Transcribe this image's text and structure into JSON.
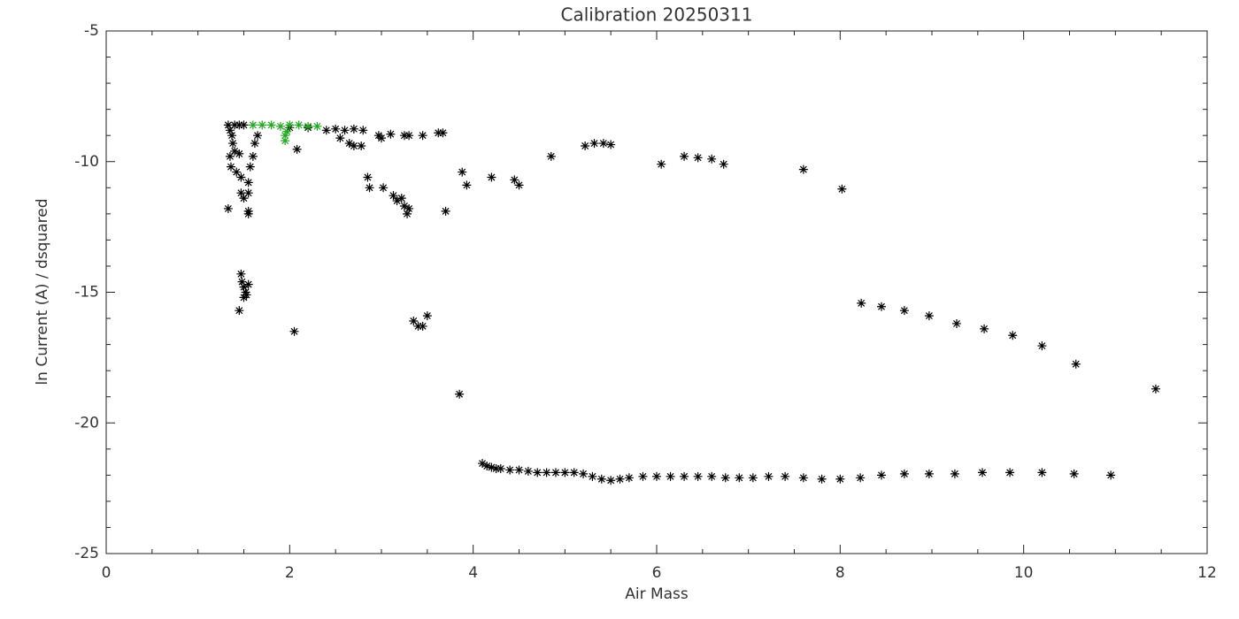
{
  "chart_data": {
    "type": "scatter",
    "title": "Calibration 20250311",
    "x_label": "Air Mass",
    "y_label": "ln Current (A) / dsquared",
    "xlim": [
      0,
      12
    ],
    "ylim": [
      -25,
      -5
    ],
    "xticks": [
      0,
      2,
      4,
      6,
      8,
      10,
      12
    ],
    "yticks": [
      -25,
      -20,
      -15,
      -10,
      -5
    ],
    "series": [
      {
        "color": "#000000",
        "x": [
          1.33,
          1.35,
          1.37,
          1.38,
          1.4,
          1.35,
          1.36,
          1.42,
          1.45,
          1.47,
          1.33,
          1.47,
          1.5,
          1.55,
          1.55,
          1.55,
          1.55,
          1.57,
          1.6,
          1.62,
          1.65,
          1.5,
          1.45,
          1.4,
          1.47,
          1.48,
          1.5,
          1.52,
          1.5,
          1.53,
          1.45,
          1.55,
          2.05,
          2.08,
          2.0,
          2.2,
          2.4,
          2.5,
          2.6,
          2.7,
          2.8,
          2.55,
          2.65,
          2.7,
          2.78,
          2.85,
          2.87,
          2.97,
          3.0,
          3.02,
          3.1,
          3.13,
          3.17,
          3.22,
          3.25,
          3.28,
          3.3,
          3.25,
          3.3,
          3.45,
          3.62,
          3.67,
          3.7,
          3.35,
          3.4,
          3.45,
          3.5,
          3.85,
          3.88,
          3.93,
          4.2,
          4.45,
          4.5,
          4.85,
          5.22,
          5.32,
          5.42,
          5.5,
          6.05,
          6.3,
          6.45,
          6.6,
          6.73,
          7.6,
          8.02,
          8.23,
          8.45,
          8.7,
          8.97,
          9.27,
          9.57,
          9.88,
          10.2,
          10.57,
          11.44,
          4.1,
          4.15,
          4.2,
          4.25,
          4.3,
          4.4,
          4.5,
          4.6,
          4.7,
          4.8,
          4.9,
          5.0,
          5.1,
          5.2,
          5.3,
          5.4,
          5.5,
          5.6,
          5.7,
          5.85,
          6.0,
          6.15,
          6.3,
          6.45,
          6.6,
          6.75,
          6.9,
          7.05,
          7.22,
          7.4,
          7.6,
          7.8,
          8.0,
          8.22,
          8.45,
          8.7,
          8.97,
          9.25,
          9.55,
          9.85,
          10.2,
          10.55,
          10.95
        ],
        "values": [
          -8.6,
          -8.8,
          -9.0,
          -9.3,
          -9.6,
          -9.8,
          -10.2,
          -10.4,
          -9.7,
          -10.6,
          -11.8,
          -11.2,
          -11.4,
          -10.8,
          -11.2,
          -11.9,
          -12.0,
          -10.2,
          -9.8,
          -9.3,
          -9.0,
          -8.6,
          -8.6,
          -8.6,
          -14.3,
          -14.6,
          -14.8,
          -15.0,
          -15.2,
          -15.1,
          -15.7,
          -14.7,
          -16.5,
          -9.53,
          -8.7,
          -8.7,
          -8.8,
          -8.75,
          -8.8,
          -8.75,
          -8.8,
          -9.1,
          -9.3,
          -9.4,
          -9.4,
          -10.6,
          -11.0,
          -9.0,
          -9.1,
          -11.0,
          -8.95,
          -11.3,
          -11.5,
          -11.4,
          -11.7,
          -12.0,
          -11.8,
          -9.0,
          -9.0,
          -9.0,
          -8.9,
          -8.9,
          -11.9,
          -16.1,
          -16.3,
          -16.3,
          -15.9,
          -18.9,
          -10.4,
          -10.9,
          -10.6,
          -10.7,
          -10.9,
          -9.8,
          -9.4,
          -9.3,
          -9.3,
          -9.35,
          -10.1,
          -9.8,
          -9.85,
          -9.9,
          -10.1,
          -10.3,
          -11.05,
          -15.42,
          -15.55,
          -15.7,
          -15.9,
          -16.2,
          -16.4,
          -16.65,
          -17.05,
          -17.75,
          -18.7,
          -21.55,
          -21.65,
          -21.7,
          -21.75,
          -21.75,
          -21.8,
          -21.8,
          -21.85,
          -21.9,
          -21.9,
          -21.9,
          -21.9,
          -21.9,
          -21.95,
          -22.05,
          -22.15,
          -22.2,
          -22.15,
          -22.1,
          -22.05,
          -22.05,
          -22.05,
          -22.05,
          -22.05,
          -22.05,
          -22.1,
          -22.1,
          -22.1,
          -22.05,
          -22.05,
          -22.1,
          -22.15,
          -22.15,
          -22.1,
          -22.0,
          -21.95,
          -21.95,
          -21.95,
          -21.9,
          -21.9,
          -21.9,
          -21.95,
          -22.0
        ]
      },
      {
        "color": "#22aa22",
        "x": [
          1.6,
          1.7,
          1.8,
          1.9,
          2.0,
          2.1,
          2.2,
          2.3,
          1.95,
          1.95,
          1.97
        ],
        "values": [
          -8.6,
          -8.6,
          -8.6,
          -8.65,
          -8.6,
          -8.6,
          -8.65,
          -8.65,
          -9.0,
          -9.2,
          -8.85
        ]
      }
    ]
  }
}
